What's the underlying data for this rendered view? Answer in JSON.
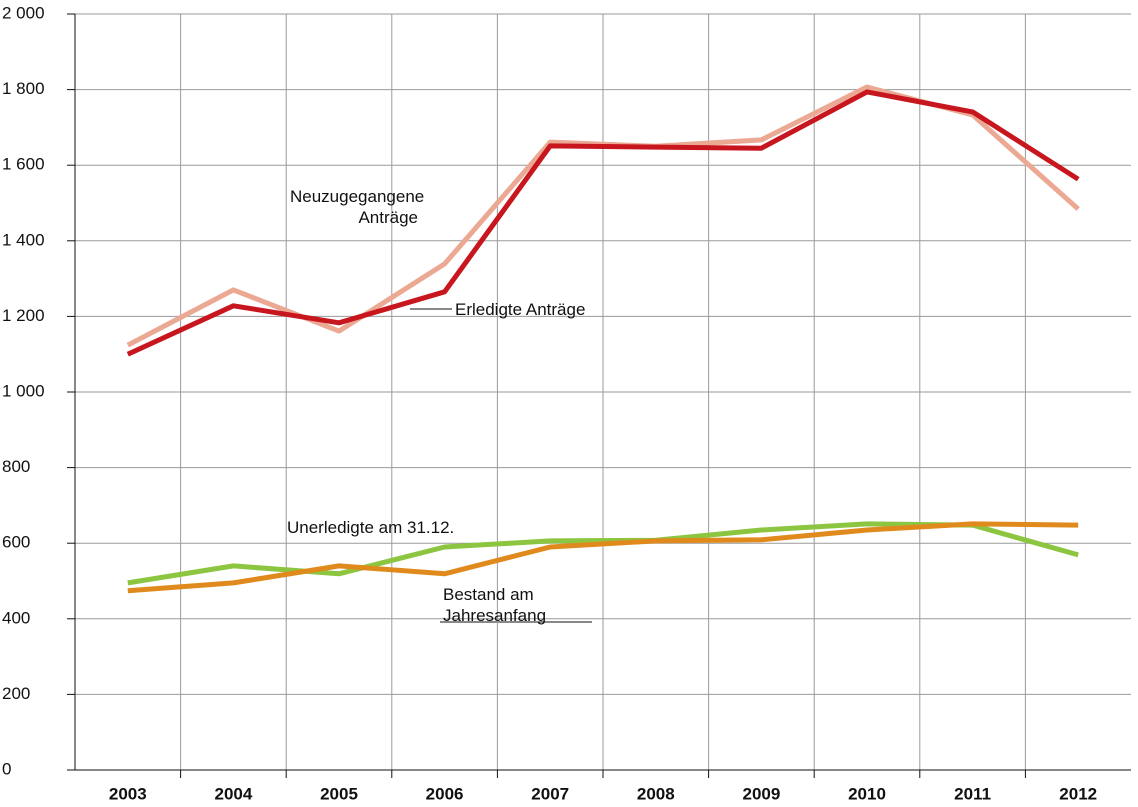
{
  "chart_data": {
    "type": "line",
    "categories": [
      "2003",
      "2004",
      "2005",
      "2006",
      "2007",
      "2008",
      "2009",
      "2010",
      "2011",
      "2012"
    ],
    "series": [
      {
        "name": "Neuzugegangene Anträge",
        "color": "#eba893",
        "values": [
          1124,
          1270,
          1161,
          1339,
          1661,
          1650,
          1667,
          1807,
          1733,
          1484
        ]
      },
      {
        "name": "Erledigte Anträge",
        "color": "#c8161e",
        "values": [
          1100,
          1228,
          1183,
          1265,
          1651,
          1648,
          1645,
          1794,
          1741,
          1563
        ]
      },
      {
        "name": "Unerledigte am 31.12.",
        "color": "#8cc540",
        "values": [
          495,
          540,
          519,
          590,
          606,
          608,
          635,
          651,
          648,
          569
        ]
      },
      {
        "name": "Bestand am Jahresanfang",
        "color": "#e08a1e",
        "values": [
          474,
          495,
          540,
          519,
          590,
          606,
          609,
          635,
          651,
          648
        ]
      }
    ],
    "ylim": [
      0,
      2000
    ],
    "yticks": [
      0,
      200,
      400,
      600,
      800,
      {
        "value": 1000,
        "label": "1 000"
      },
      {
        "value": 1200,
        "label": "1 200"
      },
      {
        "value": 1400,
        "label": "1 400"
      },
      {
        "value": 1600,
        "label": "1 600"
      },
      {
        "value": 1800,
        "label": "1 800"
      },
      {
        "value": 2000,
        "label": "2 000"
      }
    ],
    "grid": true
  }
}
